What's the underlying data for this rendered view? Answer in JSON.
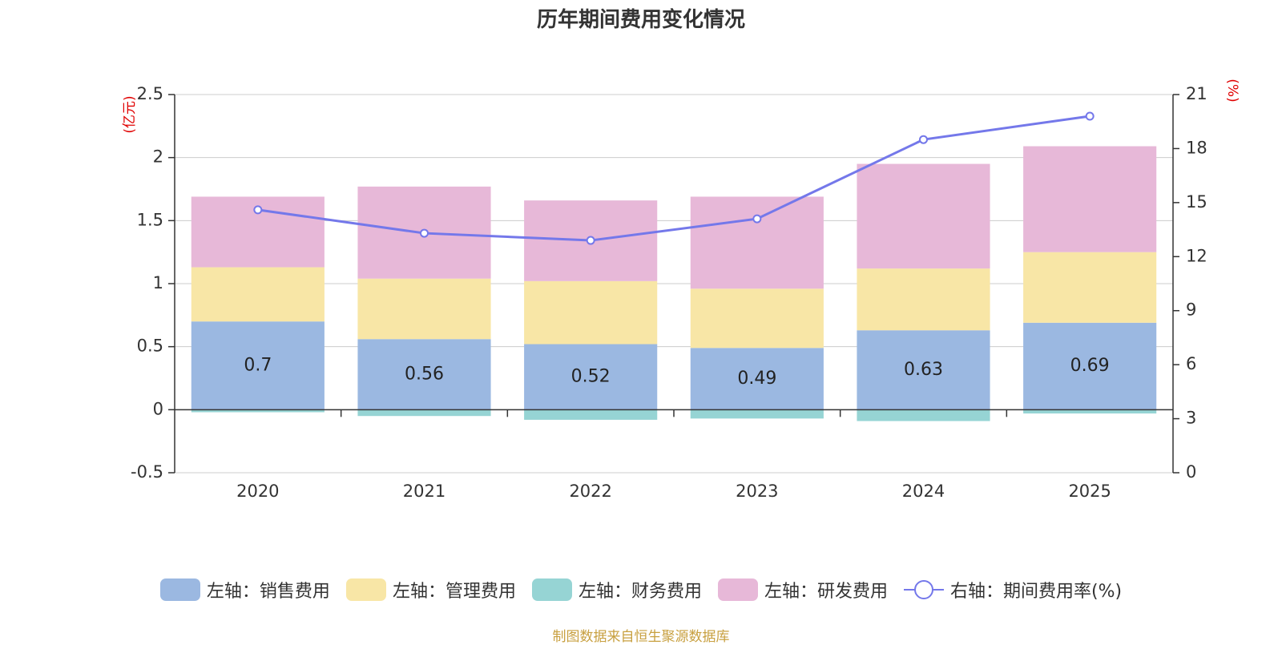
{
  "chart_data": {
    "type": "bar",
    "title": "历年期间费用变化情况",
    "source": "制图数据来自恒生聚源数据库",
    "categories": [
      "2020",
      "2021",
      "2022",
      "2023",
      "2024",
      "2025"
    ],
    "left_axis": {
      "unit": "(亿元)",
      "ylim": [
        -0.5,
        2.5
      ],
      "ticks": [
        "-0.5",
        "0",
        "0.5",
        "1",
        "1.5",
        "2",
        "2.5"
      ]
    },
    "right_axis": {
      "unit": "(%)",
      "ylim": [
        0,
        21
      ],
      "ticks": [
        "0",
        "3",
        "6",
        "9",
        "12",
        "15",
        "18",
        "21"
      ]
    },
    "stacked": true,
    "series": [
      {
        "name": "左轴：销售费用",
        "axis": "left",
        "type": "bar",
        "color": "#9bb8e1",
        "values": [
          0.7,
          0.56,
          0.52,
          0.49,
          0.63,
          0.69
        ],
        "labels": [
          "0.7",
          "0.56",
          "0.52",
          "0.49",
          "0.63",
          "0.69"
        ]
      },
      {
        "name": "左轴：管理费用",
        "axis": "left",
        "type": "bar",
        "color": "#f8e6a6",
        "values": [
          0.43,
          0.48,
          0.5,
          0.47,
          0.49,
          0.56
        ]
      },
      {
        "name": "左轴：财务费用",
        "axis": "left",
        "type": "bar",
        "color": "#96d4d4",
        "values": [
          -0.02,
          -0.05,
          -0.08,
          -0.07,
          -0.09,
          -0.03
        ]
      },
      {
        "name": "左轴：研发费用",
        "axis": "left",
        "type": "bar",
        "color": "#e7b8d8",
        "values": [
          0.56,
          0.73,
          0.64,
          0.73,
          0.83,
          0.84
        ]
      },
      {
        "name": "右轴：期间费用率(%)",
        "axis": "right",
        "type": "line",
        "color": "#7478ea",
        "values": [
          14.6,
          13.3,
          12.9,
          14.1,
          18.5,
          19.8
        ]
      }
    ],
    "grid": true,
    "legend_position": "bottom"
  }
}
